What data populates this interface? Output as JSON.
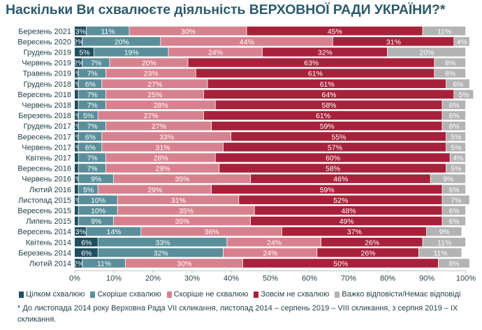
{
  "title": "Наскільки Ви схвалюєте діяльність ВЕРХОВНОЇ РАДИ УКРАЇНИ?*",
  "footnote": "* До листопада 2014 року Верховна Рада VII скликання, листопад 2014 – серпень 2019 – VIII скликання, з серпня 2019 – IX скликання.",
  "chart_data": {
    "type": "bar",
    "orientation": "horizontal",
    "stacked": true,
    "title": "Наскільки Ви схвалюєте діяльність ВЕРХОВНОЇ РАДИ УКРАЇНИ?*",
    "xlabel": "",
    "ylabel": "",
    "xlim": [
      0,
      100
    ],
    "x_ticks": [
      "0%",
      "10%",
      "20%",
      "30%",
      "40%",
      "50%",
      "60%",
      "70%",
      "80%",
      "90%",
      "100%"
    ],
    "legend_position": "bottom",
    "categories": [
      "Березень 2021",
      "Вересень 2020",
      "Грудень 2019",
      "Червень 2019",
      "Травень 2019",
      "Грудень 2018",
      "Вересень 2018",
      "Червень 2018",
      "Березень 2018",
      "Грудень 2017",
      "Вересень 2017",
      "Червень 2017",
      "Квітень 2017",
      "Вересень 2016",
      "Червень 2016",
      "Лютий 2016",
      "Листопад 2015",
      "Вересень 2015",
      "Липень 2015",
      "Вересень 2014",
      "Квітень 2014",
      "Березень 2014",
      "Лютий 2014"
    ],
    "series": [
      {
        "name": "Цілком схвалюю",
        "color": "#1f4e5e",
        "label_color": "#ffffff",
        "values": [
          3,
          2,
          5,
          2,
          1,
          1,
          1,
          1,
          1,
          1,
          1,
          1,
          1,
          1,
          1,
          1,
          1,
          1,
          1,
          3,
          6,
          6,
          2
        ],
        "labels": [
          "3%",
          "2%",
          "5%",
          "2%",
          "1%",
          "1%",
          "",
          "",
          "1%",
          "1%",
          "1%",
          "1%",
          "",
          "",
          "1%",
          "",
          "1%",
          "",
          "",
          "3%",
          "6%",
          "6%",
          "2%"
        ]
      },
      {
        "name": "Скоріше схвалюю",
        "color": "#5a8e9b",
        "label_color": "#ffffff",
        "values": [
          11,
          20,
          19,
          7,
          7,
          6,
          7,
          7,
          5,
          7,
          6,
          6,
          7,
          7,
          9,
          5,
          10,
          10,
          9,
          14,
          33,
          32,
          11
        ],
        "labels": [
          "11%",
          "20%",
          "19%",
          "7%",
          "7%",
          "6%",
          "7%",
          "7%",
          "5%",
          "7%",
          "6%",
          "6%",
          "7%",
          "7%",
          "9%",
          "5%",
          "10%",
          "10%",
          "9%",
          "14%",
          "33%",
          "32%",
          "11%"
        ]
      },
      {
        "name": "Скоріше не схвалюю",
        "color": "#d8818e",
        "label_color": "#ffffff",
        "values": [
          30,
          44,
          24,
          20,
          23,
          27,
          25,
          28,
          27,
          27,
          33,
          31,
          28,
          29,
          35,
          29,
          31,
          35,
          35,
          36,
          24,
          24,
          30
        ],
        "labels": [
          "30%",
          "44%",
          "24%",
          "20%",
          "23%",
          "27%",
          "25%",
          "28%",
          "27%",
          "27%",
          "33%",
          "31%",
          "28%",
          "29%",
          "35%",
          "29%",
          "31%",
          "35%",
          "35%",
          "36%",
          "24%",
          "24%",
          "30%"
        ]
      },
      {
        "name": "Зовсім не схвалюю",
        "color": "#a8213a",
        "label_color": "#ffffff",
        "values": [
          45,
          31,
          32,
          63,
          61,
          61,
          64,
          58,
          61,
          59,
          55,
          57,
          60,
          58,
          46,
          59,
          52,
          48,
          49,
          37,
          26,
          26,
          50
        ],
        "labels": [
          "45%",
          "31%",
          "32%",
          "63%",
          "61%",
          "61%",
          "64%",
          "58%",
          "61%",
          "59%",
          "55%",
          "57%",
          "60%",
          "58%",
          "46%",
          "59%",
          "52%",
          "48%",
          "49%",
          "37%",
          "26%",
          "26%",
          "50%"
        ]
      },
      {
        "name": "Важко відповісти/Немає відповіді",
        "color": "#b3b3b3",
        "label_color": "#ffffff",
        "values": [
          11,
          4,
          20,
          8,
          8,
          6,
          5,
          6,
          6,
          6,
          5,
          5,
          4,
          5,
          9,
          6,
          7,
          6,
          6,
          9,
          11,
          11,
          8
        ],
        "labels": [
          "11%",
          "4%",
          "20%",
          "8%",
          "8%",
          "6%",
          "5%",
          "6%",
          "6%",
          "6%",
          "5%",
          "5%",
          "4%",
          "5%",
          "9%",
          "6%",
          "7%",
          "6%",
          "6%",
          "9%",
          "11%",
          "11%",
          "8%"
        ]
      }
    ]
  }
}
